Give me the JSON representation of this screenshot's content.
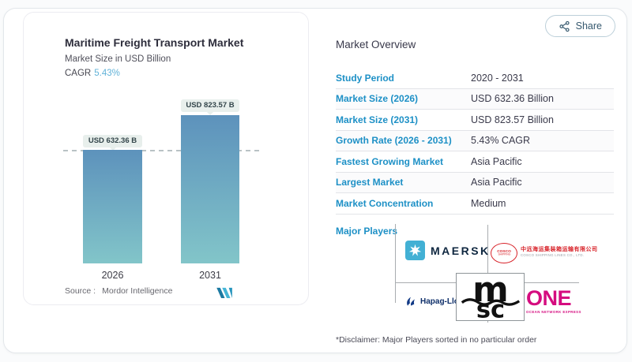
{
  "page": {
    "share_label": "Share"
  },
  "chart_panel": {
    "title": "Maritime Freight Transport Market",
    "subtitle": "Market Size in USD Billion",
    "cagr_label": "CAGR",
    "cagr_value": "5.43%",
    "source_label": "Source :",
    "source_brand": "Mordor Intelligence"
  },
  "chart_data": {
    "type": "bar",
    "title": "Maritime Freight Transport Market",
    "subtitle": "Market Size in USD Billion",
    "unit": "USD Billion",
    "cagr_pct": 5.43,
    "categories": [
      "2026",
      "2031"
    ],
    "values": [
      632.36,
      823.57
    ],
    "value_labels": [
      "USD 632.36 B",
      "USD 823.57 B"
    ],
    "reference_line": 632.36,
    "bar_gradient": [
      "#5d92bc",
      "#82c5c9"
    ],
    "grid": "off",
    "legend": "none"
  },
  "overview": {
    "title": "Market Overview",
    "rows": [
      {
        "label": "Study Period",
        "value": "2020 - 2031"
      },
      {
        "label": "Market Size (2026)",
        "value": "USD 632.36 Billion"
      },
      {
        "label": "Market Size (2031)",
        "value": "USD 823.57 Billion"
      },
      {
        "label": "Growth Rate (2026 - 2031)",
        "value": "5.43% CAGR"
      },
      {
        "label": "Fastest Growing Market",
        "value": "Asia Pacific"
      },
      {
        "label": "Largest Market",
        "value": "Asia Pacific"
      },
      {
        "label": "Market Concentration",
        "value": "Medium"
      }
    ],
    "major_players_label": "Major Players",
    "players": {
      "maersk": {
        "name": "MAERSK"
      },
      "cosco": {
        "oval_line1": "COSCO",
        "oval_line2": "SHIPPING",
        "cn": "中远海运集装箱运输有限公司",
        "sub": "COSCO SHIPPING LINES CO., LTD."
      },
      "hapag": {
        "name": "Hapag-Lloyd"
      },
      "msc": {
        "top": "m",
        "bottom": "sc"
      },
      "one": {
        "name": "ONE",
        "sub": "OCEAN NETWORK EXPRESS"
      }
    },
    "disclaimer": "*Disclaimer: Major Players sorted in no particular order"
  },
  "colors": {
    "accent_blue": "#1d90c6",
    "cagr_blue": "#61b2d8",
    "bar_top": "#5d92bc",
    "bar_bottom": "#82c5c9",
    "maersk_blue": "#42b0d4",
    "cosco_red": "#d8232a",
    "hapag_navy": "#0e2f6a",
    "msc_black": "#111111",
    "one_magenta": "#d50c7f"
  }
}
